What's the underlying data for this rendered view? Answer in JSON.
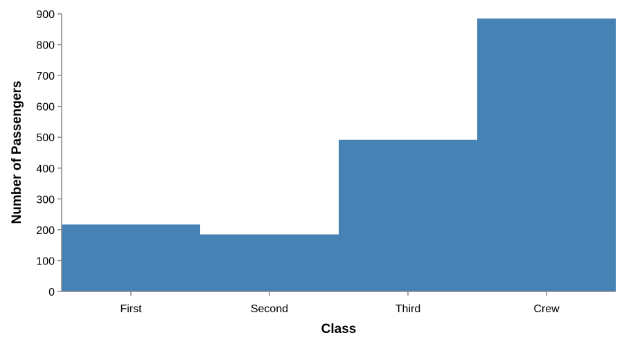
{
  "chart_data": {
    "type": "bar",
    "categories": [
      "First",
      "Second",
      "Third",
      "Crew"
    ],
    "values": [
      217,
      185,
      492,
      885
    ],
    "xlabel": "Class",
    "ylabel": "Number of Passengers",
    "ylim": [
      0,
      900
    ],
    "yticks": [
      0,
      100,
      200,
      300,
      400,
      500,
      600,
      700,
      800,
      900
    ],
    "grid": false,
    "bar_color": "#4682b4",
    "axis_color": "#888888"
  }
}
